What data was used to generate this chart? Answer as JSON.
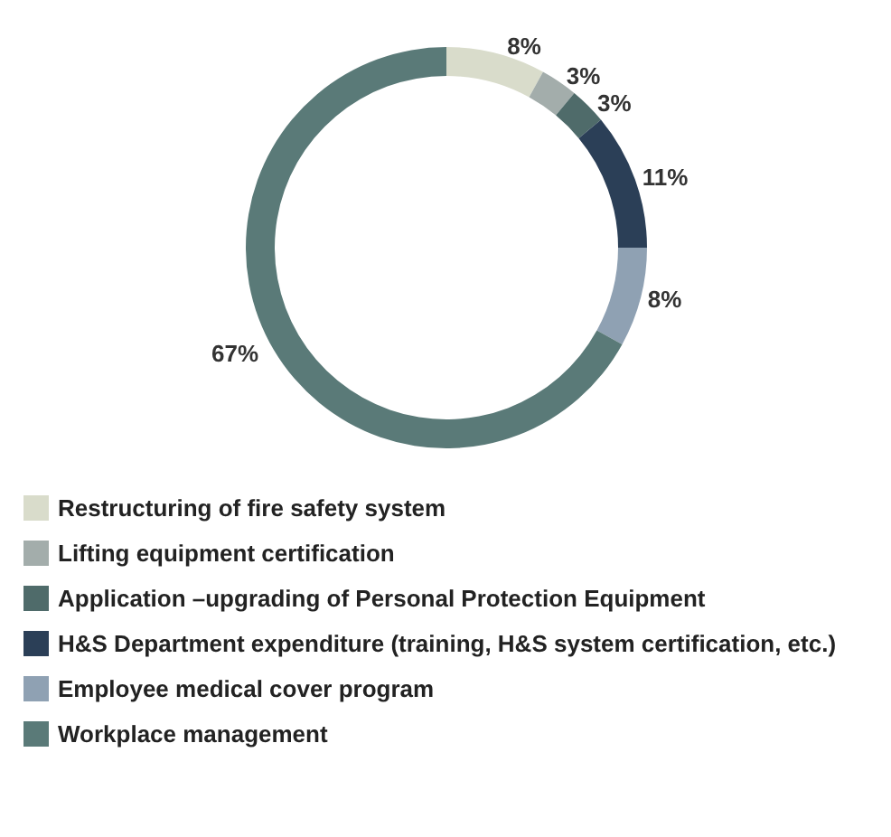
{
  "chart_data": {
    "type": "donut",
    "categories": [
      "Restructuring of fire safety system",
      "Lifting equipment certification",
      "Application –upgrading of Personal Protection Equipment",
      "H&S Department expenditure (training, H&S system certification, etc.)",
      "Employee medical cover program",
      "Workplace management"
    ],
    "values": [
      8,
      3,
      3,
      11,
      8,
      67
    ],
    "value_labels": [
      "8%",
      "3%",
      "3%",
      "11%",
      "8%",
      "67%"
    ],
    "colors": [
      "#d9dccb",
      "#a3adab",
      "#4f6b6a",
      "#2b3f57",
      "#8fa1b3",
      "#5a7a78"
    ],
    "legend": "bottom"
  }
}
